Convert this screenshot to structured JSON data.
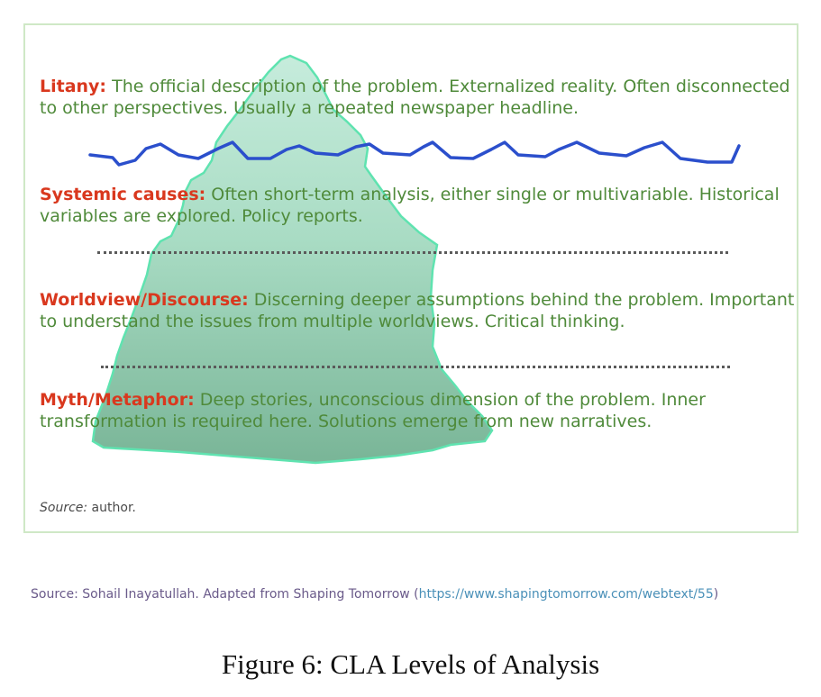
{
  "diagram": {
    "layers": [
      {
        "heading": "Litany:",
        "text": " The official description of the problem. Externalized reality. Often disconnected to other perspectives. Usually a repeated newspaper headline."
      },
      {
        "heading": "Systemic causes:",
        "text": " Often short-term analysis, either single or multivariable. Historical  variables are explored.  Policy reports."
      },
      {
        "heading": "Worldview/Discourse:",
        "text": " Discerning deeper assumptions behind the problem. Important to understand the issues from multiple worldviews. Critical thinking."
      },
      {
        "heading": "Myth/Metaphor:",
        "text": " Deep stories, unconscious dimension of the problem. Inner transformation is required here. Solutions emerge from new narratives."
      }
    ],
    "source_label": "Source:",
    "source_value": " author.",
    "colors": {
      "heading": "#d9381e",
      "body": "#4f8a3a",
      "water": "#2b4fcc",
      "iceberg": "#8fd6b6"
    }
  },
  "attribution": {
    "text": "Source: Sohail Inayatullah. Adapted from Shaping Tomorrow (",
    "url": "https://www.shapingtomorrow.com/webtext/55",
    "close": ")"
  },
  "caption": "Figure 6: CLA Levels of Analysis"
}
